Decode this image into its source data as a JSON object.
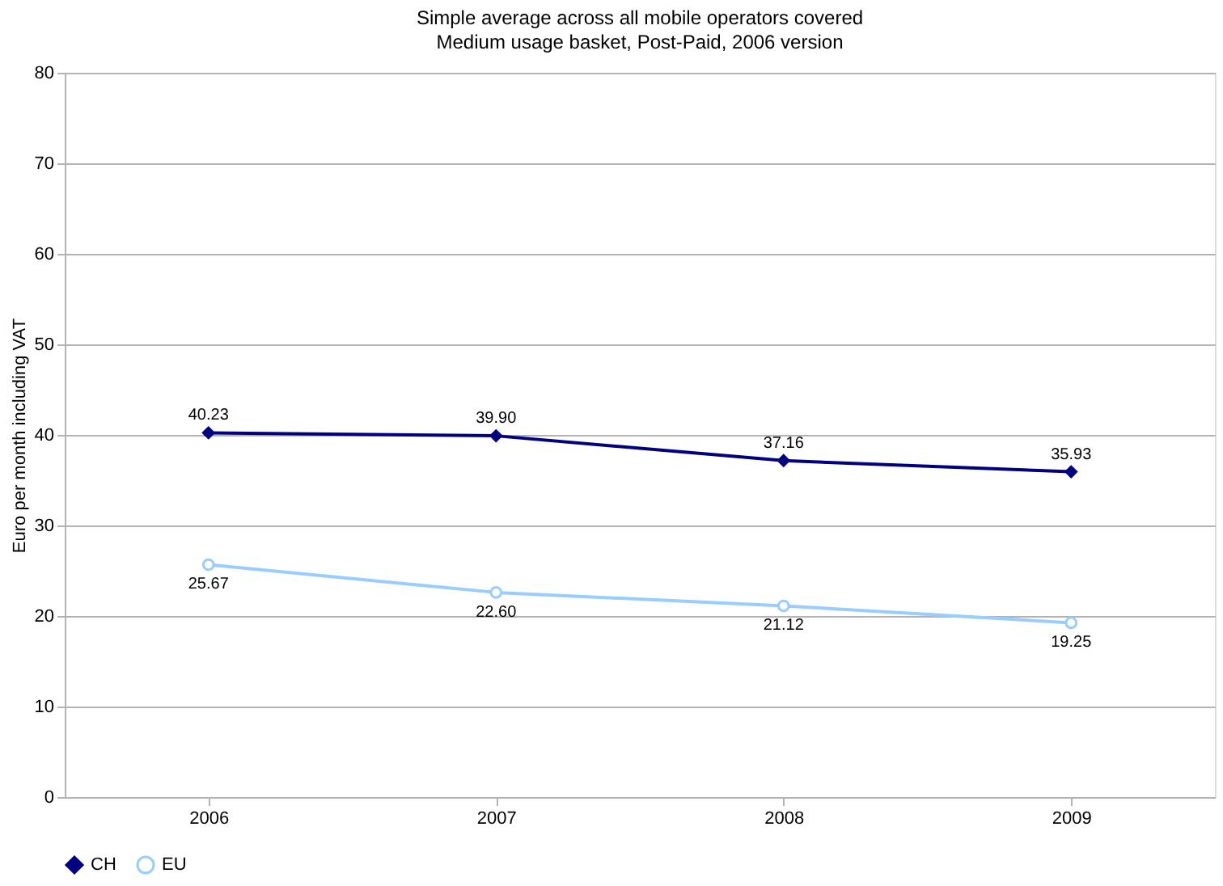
{
  "chart_data": {
    "type": "line",
    "title": "Simple average across all mobile operators covered",
    "subtitle": "Medium usage basket, Post-Paid, 2006 version",
    "ylabel": "Euro per month including VAT",
    "categories": [
      "2006",
      "2007",
      "2008",
      "2009"
    ],
    "series": [
      {
        "name": "CH",
        "color": "#000080",
        "marker": "diamond",
        "values": [
          40.23,
          39.9,
          37.16,
          35.93
        ],
        "value_labels": [
          "40.23",
          "39.90",
          "37.16",
          "35.93"
        ]
      },
      {
        "name": "EU",
        "color": "#99ccff",
        "marker": "circle",
        "values": [
          25.67,
          22.6,
          21.12,
          19.25
        ],
        "value_labels": [
          "25.67",
          "22.60",
          "21.12",
          "19.25"
        ]
      }
    ],
    "ylim": [
      0,
      80
    ],
    "yticks": [
      0,
      10,
      20,
      30,
      40,
      50,
      60,
      70,
      80
    ],
    "grid": "y",
    "legend": "bottom",
    "line_style": "solid"
  }
}
